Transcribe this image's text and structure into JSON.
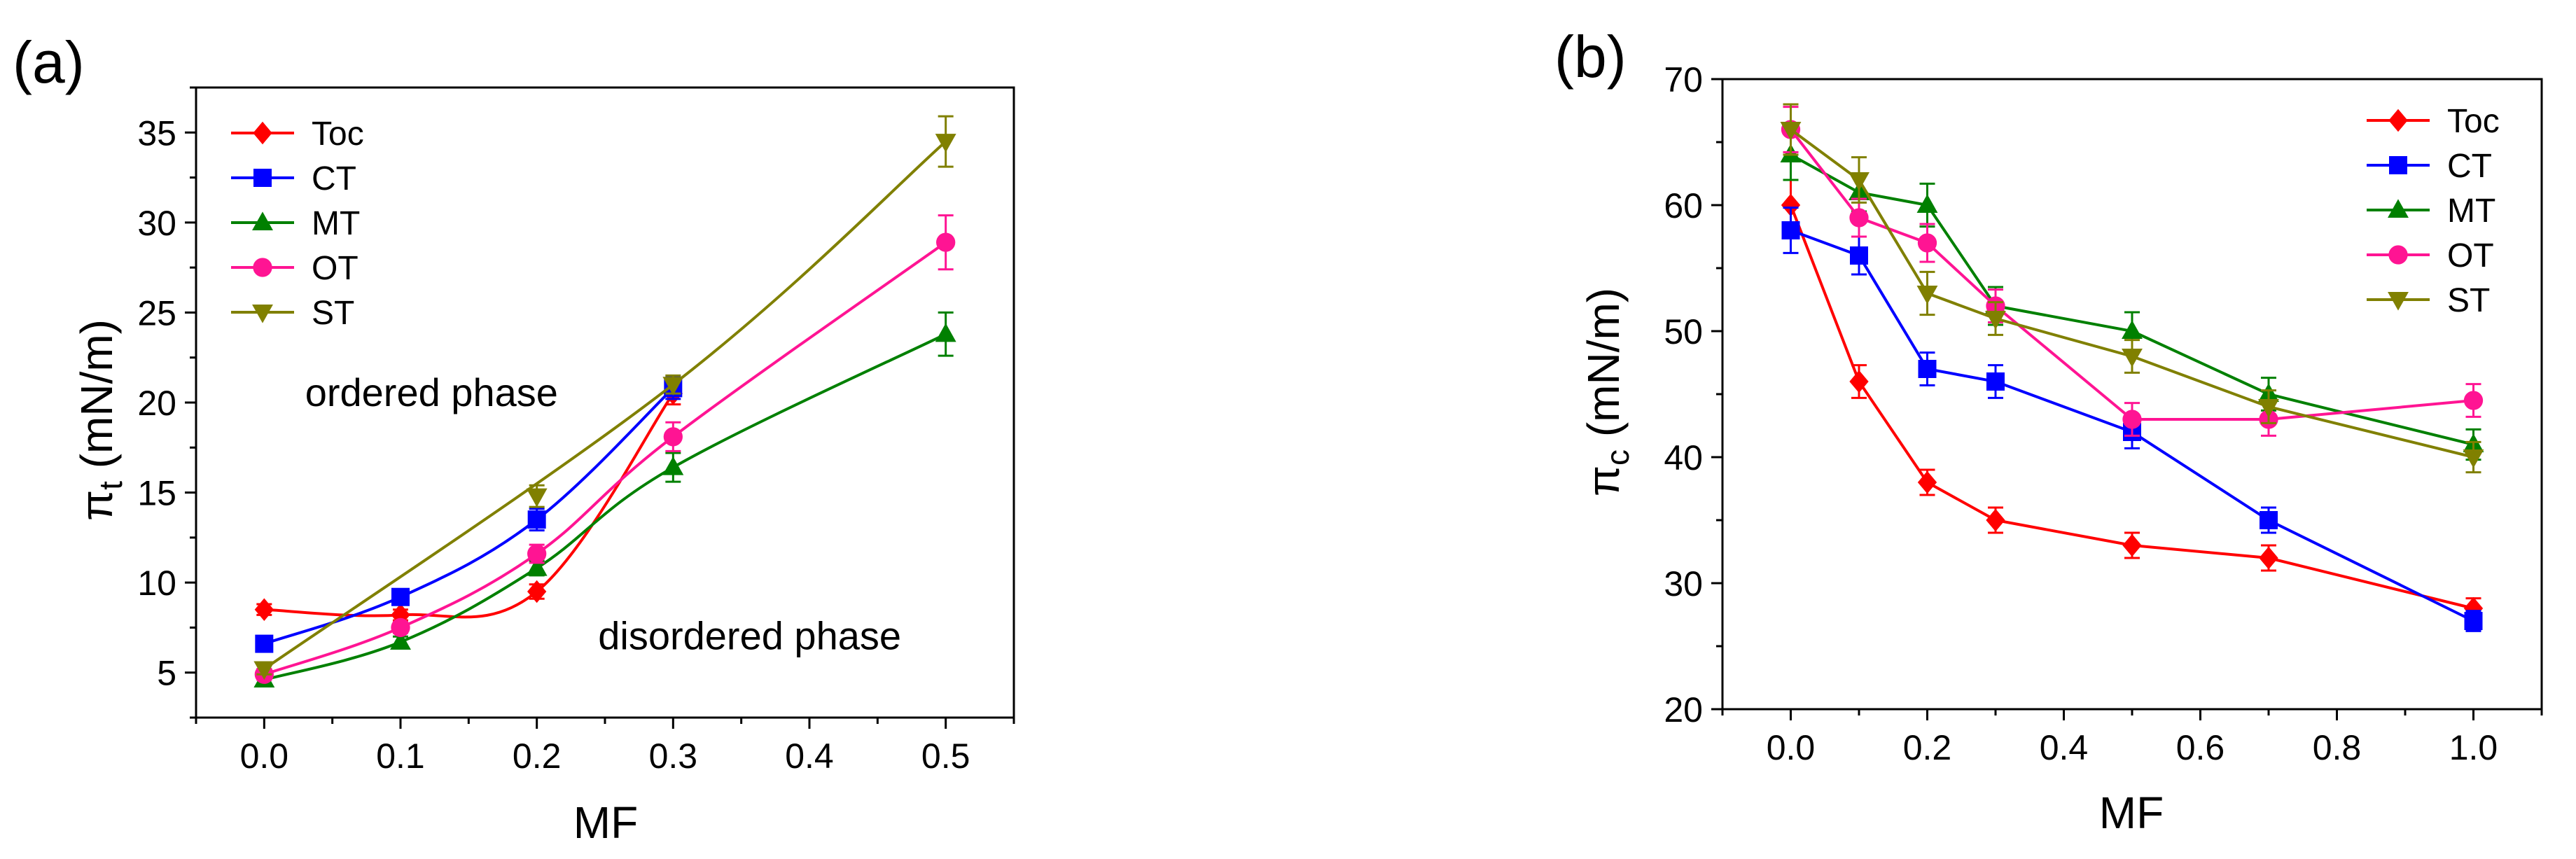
{
  "chart_data": [
    {
      "type": "line",
      "panel_label": "(a)",
      "xlabel": "MF",
      "ylabel_main": "π",
      "ylabel_sub": "t",
      "ylabel_unit": " (mN/m)",
      "xlim": [
        -0.05,
        0.55
      ],
      "ylim": [
        2.5,
        37.5
      ],
      "xticks": [
        0.0,
        0.1,
        0.2,
        0.3,
        0.4,
        0.5
      ],
      "xtick_labels": [
        "0.0",
        "0.1",
        "0.2",
        "0.3",
        "0.4",
        "0.5"
      ],
      "yticks": [
        5,
        10,
        15,
        20,
        25,
        30,
        35
      ],
      "ytick_labels": [
        "5",
        "10",
        "15",
        "20",
        "25",
        "30",
        "35"
      ],
      "legend_position": "top-left",
      "annotations": [
        {
          "text": "ordered phase",
          "x": 0.03,
          "y": 19.8
        },
        {
          "text": "disordered phase",
          "x": 0.245,
          "y": 6.3
        }
      ],
      "series": [
        {
          "name": "Toc",
          "color": "#ff0000",
          "marker": "diamond",
          "x": [
            0.0,
            0.1,
            0.2,
            0.3
          ],
          "y": [
            8.5,
            8.2,
            9.5,
            20.5
          ],
          "err": [
            0.3,
            0.3,
            0.4,
            0.6
          ]
        },
        {
          "name": "CT",
          "color": "#0000ff",
          "marker": "square",
          "x": [
            0.0,
            0.1,
            0.2,
            0.3
          ],
          "y": [
            6.6,
            9.2,
            13.5,
            20.8
          ],
          "err": [
            0.3,
            0.3,
            0.6,
            0.6
          ]
        },
        {
          "name": "MT",
          "color": "#008000",
          "marker": "triangle-up",
          "x": [
            0.0,
            0.1,
            0.2,
            0.3,
            0.5
          ],
          "y": [
            4.6,
            6.7,
            10.8,
            16.4,
            23.8
          ],
          "err": [
            0.3,
            0.3,
            0.4,
            0.8,
            1.2
          ]
        },
        {
          "name": "OT",
          "color": "#ff1493",
          "marker": "circle",
          "x": [
            0.0,
            0.1,
            0.2,
            0.3,
            0.5
          ],
          "y": [
            4.9,
            7.5,
            11.6,
            18.1,
            28.9
          ],
          "err": [
            0.3,
            0.3,
            0.5,
            0.8,
            1.5
          ]
        },
        {
          "name": "ST",
          "color": "#808000",
          "marker": "triangle-down",
          "x": [
            0.0,
            0.3,
            0.5
          ],
          "y": [
            5.2,
            21.0,
            34.5
          ],
          "err": [
            0.3,
            0.5,
            1.4
          ],
          "extra_markers": [
            {
              "x": 0.2,
              "y": 14.8,
              "err": 0.6
            }
          ]
        }
      ]
    },
    {
      "type": "line",
      "panel_label": "(b)",
      "xlabel": "MF",
      "ylabel_main": "π",
      "ylabel_sub": "c",
      "ylabel_unit": " (mN/m)",
      "xlim": [
        -0.1,
        1.1
      ],
      "ylim": [
        20,
        70
      ],
      "xticks": [
        0.0,
        0.2,
        0.4,
        0.6,
        0.8,
        1.0
      ],
      "xtick_labels": [
        "0.0",
        "0.2",
        "0.4",
        "0.6",
        "0.8",
        "1.0"
      ],
      "yticks": [
        20,
        30,
        40,
        50,
        60,
        70
      ],
      "ytick_labels": [
        "20",
        "30",
        "40",
        "50",
        "60",
        "70"
      ],
      "legend_position": "top-right",
      "series": [
        {
          "name": "Toc",
          "color": "#ff0000",
          "marker": "diamond",
          "x": [
            0.0,
            0.1,
            0.2,
            0.3,
            0.5,
            0.7,
            1.0
          ],
          "y": [
            60,
            46,
            38,
            35,
            33,
            32,
            28
          ],
          "err": [
            2.0,
            1.3,
            1.0,
            1.0,
            1.0,
            1.0,
            0.8
          ]
        },
        {
          "name": "CT",
          "color": "#0000ff",
          "marker": "square",
          "x": [
            0.0,
            0.1,
            0.2,
            0.3,
            0.5,
            0.7,
            1.0
          ],
          "y": [
            58,
            56,
            47,
            46,
            42,
            35,
            27
          ],
          "err": [
            1.8,
            1.5,
            1.3,
            1.3,
            1.3,
            1.0,
            0.8
          ]
        },
        {
          "name": "MT",
          "color": "#008000",
          "marker": "triangle-up",
          "x": [
            0.0,
            0.1,
            0.2,
            0.3,
            0.5,
            0.7,
            1.0
          ],
          "y": [
            64,
            61,
            60,
            52,
            50,
            45,
            41
          ],
          "err": [
            2.0,
            1.5,
            1.7,
            1.5,
            1.5,
            1.3,
            1.2
          ]
        },
        {
          "name": "OT",
          "color": "#ff1493",
          "marker": "circle",
          "x": [
            0.0,
            0.1,
            0.2,
            0.3,
            0.5,
            0.7,
            1.0
          ],
          "y": [
            66,
            59,
            57,
            52,
            43,
            43,
            44.5
          ],
          "err": [
            1.8,
            1.5,
            1.5,
            1.3,
            1.3,
            1.3,
            1.3
          ]
        },
        {
          "name": "ST",
          "color": "#808000",
          "marker": "triangle-down",
          "x": [
            0.0,
            0.1,
            0.2,
            0.3,
            0.5,
            0.7,
            1.0
          ],
          "y": [
            66,
            62,
            53,
            51,
            48,
            44,
            40
          ],
          "err": [
            2.0,
            1.8,
            1.7,
            1.3,
            1.3,
            1.3,
            1.2
          ]
        }
      ]
    }
  ]
}
